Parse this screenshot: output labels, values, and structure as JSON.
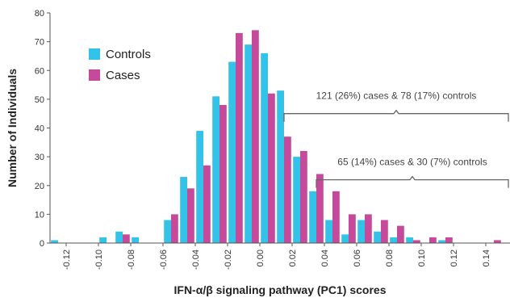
{
  "chart_data": {
    "type": "bar",
    "xlabel": "IFN-α/β signaling pathway (PC1) scores",
    "ylabel": "Number of Individuals",
    "ylim": [
      0,
      80
    ],
    "yticks": [
      0,
      10,
      20,
      30,
      40,
      50,
      60,
      70,
      80
    ],
    "xlim": [
      -0.13,
      0.155
    ],
    "xticks": [
      "-0.12",
      "-0.10",
      "-0.08",
      "-0.06",
      "-0.04",
      "-0.02",
      "0.00",
      "0.02",
      "0.04",
      "0.06",
      "0.08",
      "0.10",
      "0.12",
      "0.14"
    ],
    "bin_width": 0.01,
    "bins": [
      -0.125,
      -0.115,
      -0.105,
      -0.095,
      -0.085,
      -0.075,
      -0.065,
      -0.055,
      -0.045,
      -0.035,
      -0.025,
      -0.015,
      -0.005,
      0.005,
      0.015,
      0.025,
      0.035,
      0.045,
      0.055,
      0.065,
      0.075,
      0.085,
      0.095,
      0.105,
      0.115,
      0.125,
      0.135,
      0.145
    ],
    "series": [
      {
        "name": "Controls",
        "color": "#33c3e8",
        "values": [
          1,
          0,
          0,
          2,
          4,
          2,
          0,
          8,
          23,
          39,
          51,
          63,
          69,
          66,
          53,
          30,
          18,
          8,
          3,
          8,
          4,
          2,
          2,
          0,
          1,
          0,
          0,
          0
        ]
      },
      {
        "name": "Cases",
        "color": "#c64a9c",
        "values": [
          0,
          0,
          0,
          0,
          3,
          0,
          0,
          10,
          19,
          27,
          48,
          73,
          74,
          52,
          37,
          32,
          24,
          18,
          10,
          10,
          8,
          6,
          1,
          2,
          2,
          0,
          0,
          1
        ]
      }
    ],
    "legend": {
      "position": "top-left",
      "entries": [
        "Controls",
        "Cases"
      ]
    },
    "annotations": [
      {
        "text": "121 (26%) cases & 78 (17%) controls",
        "from": 0.015,
        "to": 0.155,
        "y": 45
      },
      {
        "text": "65 (14%)  cases & 30 (7%) controls",
        "from": 0.035,
        "to": 0.155,
        "y": 22
      }
    ],
    "grid": false
  }
}
